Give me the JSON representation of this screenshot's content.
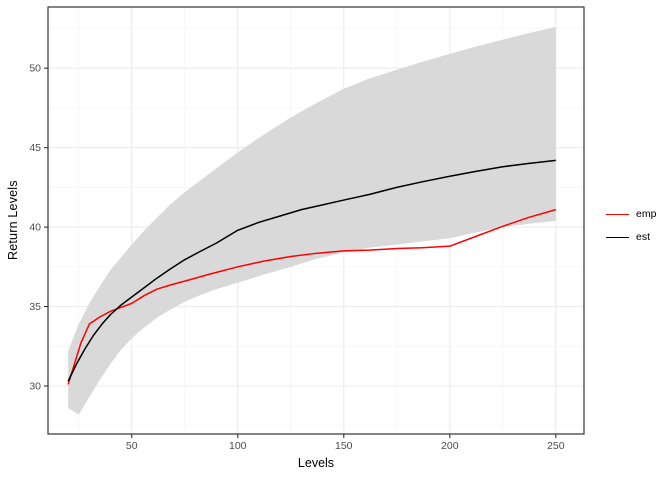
{
  "chart_data": {
    "type": "line",
    "title": "",
    "xlabel": "Levels",
    "ylabel": "Return Levels",
    "xlim": [
      10.5,
      263.3
    ],
    "ylim": [
      26.98,
      53.85
    ],
    "x_ticks": [
      50,
      100,
      150,
      200,
      250
    ],
    "y_ticks": [
      30,
      35,
      40,
      45,
      50
    ],
    "x_minor_ticks": [
      25,
      75,
      125,
      175,
      225
    ],
    "y_minor_ticks": [
      27.5,
      32.5,
      37.5,
      42.5,
      47.5,
      52.5
    ],
    "grid": true,
    "legend_position": "right",
    "band": {
      "name": "confidence-band",
      "color": "#d9d9d9",
      "x": [
        20,
        25,
        30,
        35,
        40,
        45,
        50,
        56,
        62,
        68,
        75,
        82,
        90,
        100,
        112,
        125,
        137,
        150,
        162,
        175,
        187,
        200,
        212,
        225,
        237,
        250
      ],
      "lower": [
        28.6,
        28.2,
        29.3,
        30.4,
        31.4,
        32.3,
        33.0,
        33.7,
        34.3,
        34.8,
        35.3,
        35.7,
        36.1,
        36.5,
        37.0,
        37.5,
        38.0,
        38.4,
        38.7,
        38.9,
        39.1,
        39.3,
        39.65,
        40.0,
        40.2,
        40.4
      ],
      "upper": [
        32.2,
        33.9,
        35.2,
        36.3,
        37.3,
        38.1,
        38.9,
        39.8,
        40.6,
        41.4,
        42.2,
        42.9,
        43.7,
        44.7,
        45.8,
        46.9,
        47.8,
        48.7,
        49.35,
        49.9,
        50.4,
        50.9,
        51.35,
        51.8,
        52.2,
        52.6
      ]
    },
    "series": [
      {
        "name": "emp",
        "color": "#ff0000",
        "x": [
          20,
          23,
          26,
          30,
          35,
          40,
          45,
          50,
          56,
          62,
          68,
          75,
          87,
          100,
          112,
          125,
          137,
          150,
          162,
          175,
          187,
          200,
          212,
          225,
          237,
          250
        ],
        "y": [
          30.1,
          31.4,
          32.7,
          33.9,
          34.35,
          34.7,
          34.95,
          35.2,
          35.7,
          36.1,
          36.35,
          36.6,
          37.05,
          37.5,
          37.85,
          38.15,
          38.35,
          38.5,
          38.55,
          38.65,
          38.7,
          38.8,
          39.4,
          40.05,
          40.6,
          41.1
        ]
      },
      {
        "name": "est",
        "color": "#000000",
        "x": [
          20,
          24,
          28,
          32,
          36,
          40,
          45,
          50,
          56,
          62,
          68,
          75,
          82,
          90,
          100,
          110,
          120,
          130,
          140,
          150,
          162,
          175,
          187,
          200,
          212,
          225,
          237,
          250
        ],
        "y": [
          30.3,
          31.4,
          32.35,
          33.2,
          33.9,
          34.5,
          35.1,
          35.6,
          36.2,
          36.8,
          37.35,
          37.95,
          38.45,
          39.0,
          39.8,
          40.3,
          40.7,
          41.1,
          41.4,
          41.7,
          42.05,
          42.5,
          42.85,
          43.2,
          43.5,
          43.8,
          44.0,
          44.2
        ]
      }
    ],
    "colors": {
      "background": "#ffffff",
      "grid_major": "#ebebeb",
      "grid_minor": "#f4f4f4",
      "panel_border": "#333333",
      "tick": "#333333",
      "tick_label": "#4d4d4d"
    }
  }
}
